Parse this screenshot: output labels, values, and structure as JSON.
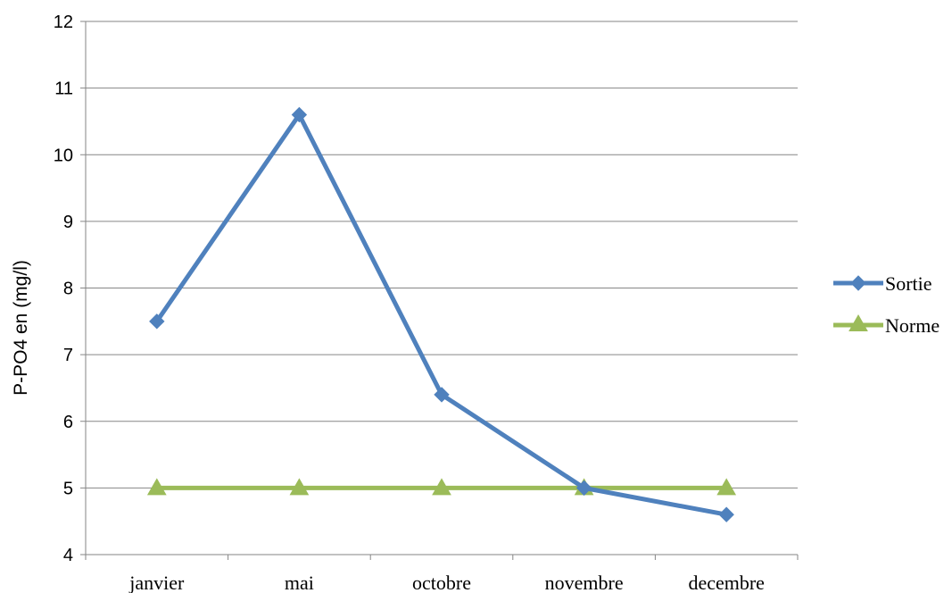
{
  "chart_data": {
    "type": "line",
    "title": "",
    "xlabel": "",
    "ylabel": "P-PO4 en (mg/l)",
    "categories": [
      "janvier",
      "mai",
      "octobre",
      "novembre",
      "decembre"
    ],
    "ylim": [
      4,
      12
    ],
    "yticks": [
      4,
      5,
      6,
      7,
      8,
      9,
      10,
      11,
      12
    ],
    "grid": true,
    "legend": "right",
    "series": [
      {
        "name": "Sortie",
        "values": [
          7.5,
          10.6,
          6.4,
          5.0,
          4.6
        ],
        "color": "#4F81BD",
        "marker": "diamond"
      },
      {
        "name": "Norme",
        "values": [
          5,
          5,
          5,
          5,
          5
        ],
        "color": "#9BBB59",
        "marker": "triangle"
      }
    ]
  }
}
